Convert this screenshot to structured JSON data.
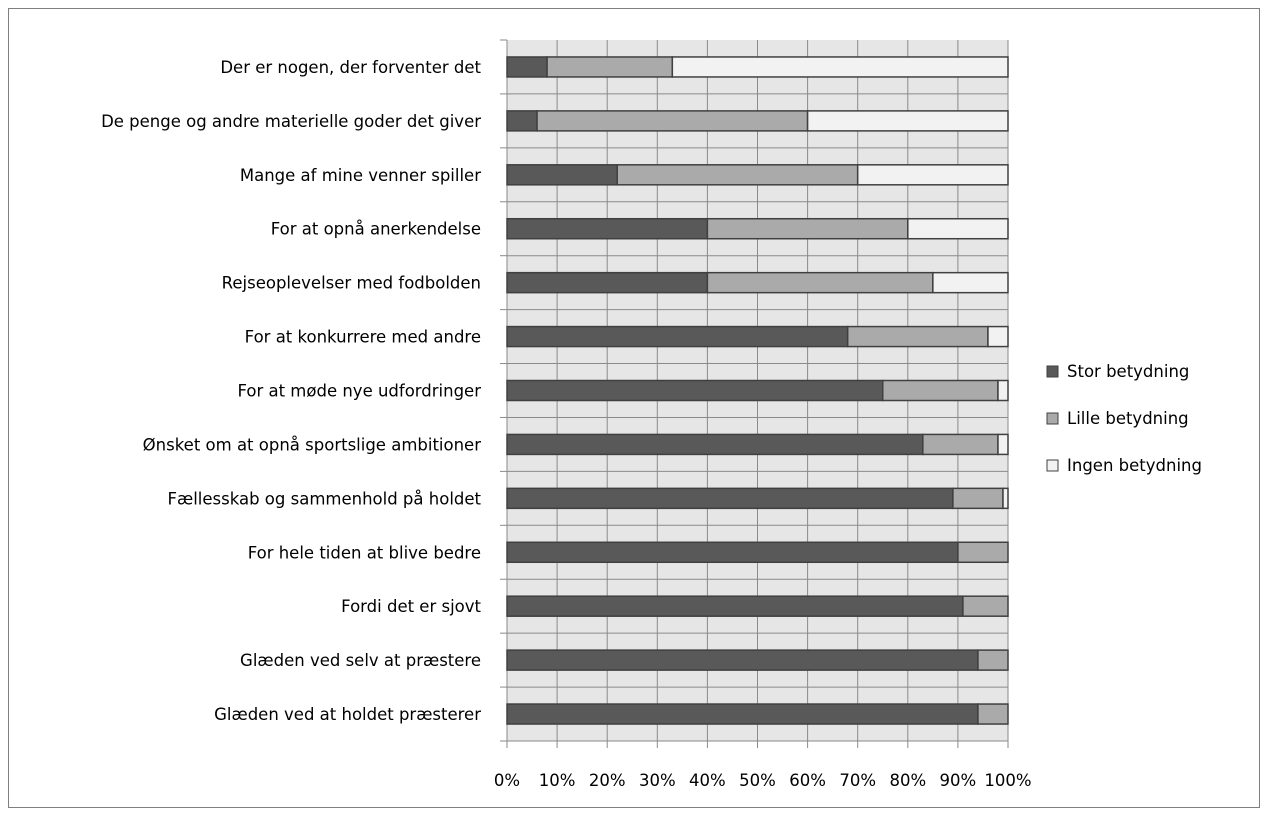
{
  "chart_data": {
    "type": "bar",
    "orientation": "horizontal",
    "stacked": "percent",
    "categories": [
      "Der er nogen, der forventer det",
      "De penge og andre materielle goder det giver",
      "Mange af mine venner spiller",
      "For at opnå anerkendelse",
      "Rejseoplevelser med fodbolden",
      "For at konkurrere med andre",
      "For at møde nye udfordringer",
      "Ønsket om at opnå sportslige ambitioner",
      "Fællesskab og sammenhold på holdet",
      "For hele tiden at blive bedre",
      "Fordi det er sjovt",
      "Glæden ved selv at præstere",
      "Glæden ved at holdet præsterer"
    ],
    "series": [
      {
        "name": "Stor betydning",
        "color": "#595959",
        "values": [
          8,
          6,
          22,
          40,
          40,
          68,
          75,
          83,
          89,
          90,
          91,
          94,
          94
        ]
      },
      {
        "name": "Lille betydning",
        "color": "#aaaaaa",
        "values": [
          25,
          54,
          48,
          40,
          45,
          28,
          23,
          15,
          10,
          10,
          9,
          6,
          6
        ]
      },
      {
        "name": "Ingen betydning",
        "color": "#f2f2f2",
        "values": [
          67,
          40,
          30,
          20,
          15,
          4,
          2,
          2,
          1,
          0,
          0,
          0,
          0
        ]
      }
    ],
    "x_ticks": [
      "0%",
      "10%",
      "20%",
      "30%",
      "40%",
      "50%",
      "60%",
      "70%",
      "80%",
      "90%",
      "100%"
    ],
    "xlim": [
      0,
      100
    ],
    "grid": true,
    "legend_position": "right"
  }
}
